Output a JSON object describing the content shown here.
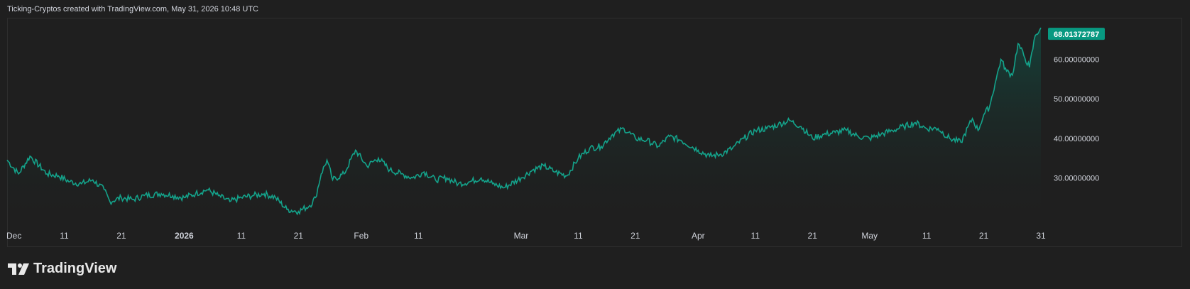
{
  "header": {
    "text": "Ticking-Cryptos created with TradingView.com, May 31, 2026 10:48 UTC"
  },
  "brand": {
    "name": "TradingView"
  },
  "colors": {
    "line": "#14a38b",
    "area_top": "#0d5e50",
    "background": "#1f1f1f",
    "label": "#089981"
  },
  "chart_data": {
    "type": "area",
    "x_labels": [
      {
        "label": "Dec",
        "bold": false
      },
      {
        "label": "11",
        "bold": false
      },
      {
        "label": "21",
        "bold": false
      },
      {
        "label": "2026",
        "bold": true
      },
      {
        "label": "11",
        "bold": false
      },
      {
        "label": "21",
        "bold": false
      },
      {
        "label": "Feb",
        "bold": false
      },
      {
        "label": "11",
        "bold": false
      },
      {
        "label": "Mar",
        "bold": false
      },
      {
        "label": "11",
        "bold": false
      },
      {
        "label": "21",
        "bold": false
      },
      {
        "label": "Apr",
        "bold": false
      },
      {
        "label": "11",
        "bold": false
      },
      {
        "label": "21",
        "bold": false
      },
      {
        "label": "May",
        "bold": false
      },
      {
        "label": "11",
        "bold": false
      },
      {
        "label": "21",
        "bold": false
      },
      {
        "label": "31",
        "bold": false
      }
    ],
    "x_dates": [
      "2025-12-01",
      "2025-12-11",
      "2025-12-21",
      "2026-01-01",
      "2026-01-11",
      "2026-01-21",
      "2026-02-01",
      "2026-02-11",
      "2026-03-01",
      "2026-03-11",
      "2026-03-21",
      "2026-04-01",
      "2026-04-11",
      "2026-04-21",
      "2026-05-01",
      "2026-05-11",
      "2026-05-21",
      "2026-05-31"
    ],
    "y_ticks": [
      "30.00000000",
      "40.00000000",
      "50.00000000",
      "60.00000000"
    ],
    "y_tick_values": [
      30,
      40,
      50,
      60
    ],
    "ylim": [
      17.5,
      70
    ],
    "last_value": "68.01372787",
    "x": [
      "2025-12-01",
      "2025-12-03",
      "2025-12-05",
      "2025-12-08",
      "2025-12-10",
      "2025-12-12",
      "2025-12-14",
      "2025-12-16",
      "2025-12-18",
      "2025-12-19",
      "2025-12-21",
      "2025-12-23",
      "2025-12-25",
      "2025-12-28",
      "2025-12-30",
      "2026-01-01",
      "2026-01-03",
      "2026-01-05",
      "2026-01-07",
      "2026-01-09",
      "2026-01-11",
      "2026-01-13",
      "2026-01-15",
      "2026-01-17",
      "2026-01-19",
      "2026-01-21",
      "2026-01-23",
      "2026-01-24",
      "2026-01-25",
      "2026-01-26",
      "2026-01-27",
      "2026-01-29",
      "2026-01-31",
      "2026-02-02",
      "2026-02-04",
      "2026-02-06",
      "2026-02-08",
      "2026-02-10",
      "2026-02-12",
      "2026-02-14",
      "2026-02-16",
      "2026-02-18",
      "2026-02-20",
      "2026-02-22",
      "2026-02-24",
      "2026-02-26",
      "2026-03-01",
      "2026-03-03",
      "2026-03-05",
      "2026-03-07",
      "2026-03-09",
      "2026-03-11",
      "2026-03-13",
      "2026-03-15",
      "2026-03-17",
      "2026-03-19",
      "2026-03-21",
      "2026-03-23",
      "2026-03-25",
      "2026-03-27",
      "2026-03-29",
      "2026-04-01",
      "2026-04-03",
      "2026-04-05",
      "2026-04-07",
      "2026-04-09",
      "2026-04-11",
      "2026-04-13",
      "2026-04-15",
      "2026-04-17",
      "2026-04-19",
      "2026-04-21",
      "2026-04-23",
      "2026-04-25",
      "2026-04-27",
      "2026-04-29",
      "2026-05-01",
      "2026-05-03",
      "2026-05-05",
      "2026-05-07",
      "2026-05-09",
      "2026-05-11",
      "2026-05-13",
      "2026-05-15",
      "2026-05-17",
      "2026-05-19",
      "2026-05-20",
      "2026-05-21",
      "2026-05-22",
      "2026-05-23",
      "2026-05-24",
      "2026-05-25",
      "2026-05-26",
      "2026-05-27",
      "2026-05-28",
      "2026-05-29",
      "2026-05-30",
      "2026-05-31"
    ],
    "y": [
      34.5,
      31,
      35.5,
      31,
      30.5,
      29,
      28.5,
      29.5,
      27,
      24,
      25,
      24.5,
      25.5,
      26,
      25.5,
      25,
      26,
      27,
      25.5,
      24,
      25,
      25.5,
      26,
      25,
      22,
      21.5,
      23,
      25,
      31,
      34.5,
      29.5,
      31,
      37,
      33,
      35,
      32,
      31,
      30,
      31.5,
      29.5,
      30,
      28.5,
      29,
      30,
      28.5,
      27.5,
      30,
      32,
      33,
      31.5,
      30.5,
      35,
      37.5,
      38,
      41,
      42.5,
      40,
      39.5,
      38,
      40.5,
      39.5,
      37,
      35.5,
      36,
      37.5,
      40,
      42,
      42.5,
      43.5,
      44.5,
      43,
      40,
      41,
      41.5,
      42,
      40.5,
      40,
      41,
      42,
      43,
      44,
      42.5,
      42.5,
      40,
      39,
      45,
      42,
      46,
      48,
      54,
      60,
      57,
      56,
      64,
      61,
      58,
      66,
      68
    ]
  }
}
